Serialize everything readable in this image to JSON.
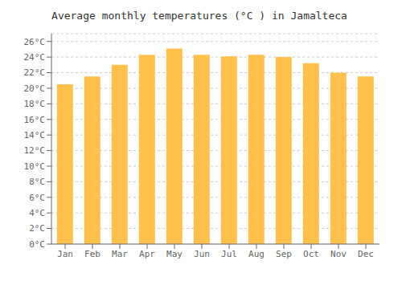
{
  "chart_data": {
    "type": "bar",
    "title": "Average monthly temperatures (°C ) in Jamalteca",
    "categories": [
      "Jan",
      "Feb",
      "Mar",
      "Apr",
      "May",
      "Jun",
      "Jul",
      "Aug",
      "Sep",
      "Oct",
      "Nov",
      "Dec"
    ],
    "values": [
      20.5,
      21.5,
      23.0,
      24.3,
      25.1,
      24.3,
      24.1,
      24.3,
      24.0,
      23.2,
      22.0,
      21.5
    ],
    "color": "#FFC04C",
    "ylim": [
      0,
      27
    ],
    "yticks": [
      {
        "value": 0,
        "label": "0°C"
      },
      {
        "value": 2,
        "label": "2°C"
      },
      {
        "value": 4,
        "label": "4°C"
      },
      {
        "value": 6,
        "label": "6°C"
      },
      {
        "value": 8,
        "label": "8°C"
      },
      {
        "value": 10,
        "label": "10°C"
      },
      {
        "value": 12,
        "label": "12°C"
      },
      {
        "value": 14,
        "label": "14°C"
      },
      {
        "value": 16,
        "label": "16°C"
      },
      {
        "value": 18,
        "label": "18°C"
      },
      {
        "value": 20,
        "label": "20°C"
      },
      {
        "value": 22,
        "label": "22°C"
      },
      {
        "value": 24,
        "label": "24°C"
      },
      {
        "value": 26,
        "label": "26°C"
      }
    ],
    "grid": true
  }
}
